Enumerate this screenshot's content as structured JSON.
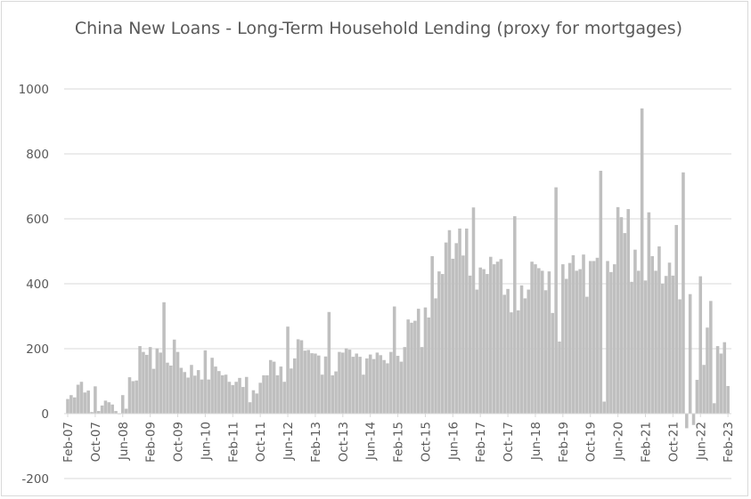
{
  "chart_data": {
    "type": "bar",
    "title": "China New Loans - Long-Term Household Lending (proxy for mortgages)",
    "xlabel": "",
    "ylabel": "",
    "ylim": [
      -200,
      1000
    ],
    "y_ticks": [
      -200,
      0,
      200,
      400,
      600,
      800,
      1000
    ],
    "x_tick_labels": [
      "Feb-07",
      "Oct-07",
      "Jun-08",
      "Feb-09",
      "Oct-09",
      "Jun-10",
      "Feb-11",
      "Oct-11",
      "Jun-12",
      "Feb-13",
      "Oct-13",
      "Jun-14",
      "Feb-15",
      "Oct-15",
      "Jun-16",
      "Feb-17",
      "Oct-17",
      "Jun-18",
      "Feb-19",
      "Oct-19",
      "Jun-20",
      "Feb-21",
      "Oct-21",
      "Jun-22",
      "Feb-23"
    ],
    "start": "Feb-07",
    "end": "Feb-23",
    "grid": true,
    "bar_color": "#bfbfbf",
    "values": [
      45,
      57,
      50,
      89,
      98,
      65,
      71,
      5,
      84,
      8,
      25,
      40,
      35,
      28,
      8,
      -2,
      57,
      15,
      112,
      100,
      102,
      208,
      190,
      181,
      205,
      138,
      201,
      188,
      343,
      157,
      148,
      228,
      190,
      141,
      128,
      111,
      150,
      117,
      134,
      105,
      195,
      105,
      172,
      145,
      131,
      118,
      120,
      98,
      88,
      98,
      110,
      82,
      113,
      35,
      72,
      62,
      95,
      118,
      118,
      165,
      160,
      118,
      145,
      98,
      268,
      139,
      170,
      229,
      226,
      194,
      196,
      186,
      185,
      179,
      120,
      176,
      313,
      118,
      130,
      190,
      188,
      201,
      197,
      175,
      185,
      175,
      120,
      170,
      182,
      168,
      188,
      180,
      165,
      155,
      190,
      330,
      178,
      160,
      205,
      290,
      280,
      286,
      323,
      205,
      327,
      296,
      485,
      355,
      438,
      430,
      527,
      565,
      477,
      525,
      570,
      487,
      570,
      425,
      635,
      382,
      450,
      445,
      430,
      483,
      460,
      468,
      476,
      366,
      384,
      312,
      608,
      318,
      395,
      355,
      382,
      468,
      460,
      448,
      440,
      380,
      438,
      310,
      697,
      222,
      460,
      415,
      464,
      488,
      440,
      445,
      490,
      360,
      470,
      470,
      480,
      748,
      37,
      470,
      436,
      460,
      636,
      605,
      556,
      630,
      406,
      505,
      440,
      940,
      410,
      620,
      485,
      440,
      515,
      400,
      424,
      465,
      425,
      581,
      352,
      743,
      -45,
      368,
      -35,
      104,
      423,
      150,
      265,
      347,
      32,
      208,
      185,
      220,
      85
    ]
  }
}
